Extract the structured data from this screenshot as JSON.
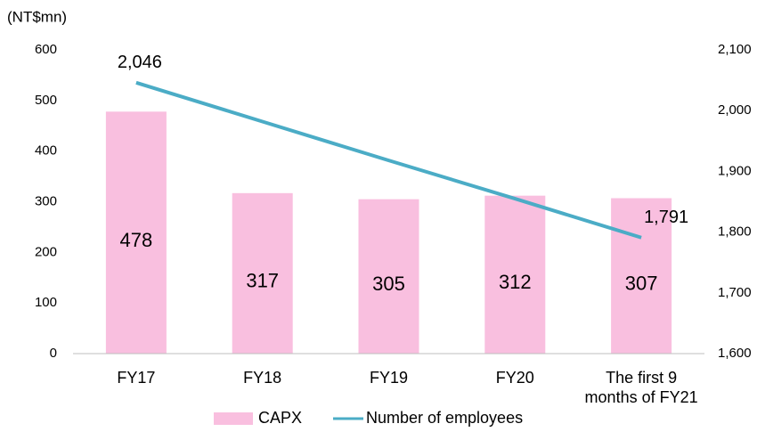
{
  "chart_data": {
    "type": "bar",
    "y_label": "(NT$mn)",
    "categories": [
      "FY17",
      "FY18",
      "FY19",
      "FY20",
      "The first 9 months of FY21"
    ],
    "series": [
      {
        "name": "CAPX",
        "type": "bar",
        "color": "#f9bfdf",
        "values": [
          478,
          317,
          305,
          312,
          307
        ]
      },
      {
        "name": "Number of employees",
        "type": "line",
        "axis": "y2",
        "color": "#4bacc6",
        "values": [
          2046,
          1982,
          1918,
          1855,
          1791
        ],
        "value_labels": [
          "2,046",
          null,
          null,
          null,
          "1,791"
        ]
      }
    ],
    "ylim": [
      0,
      600
    ],
    "yticks": [
      0,
      100,
      200,
      300,
      400,
      500,
      600
    ],
    "y2lim": [
      1600,
      2100
    ],
    "y2ticks": [
      {
        "value": 1600,
        "label": "1,600"
      },
      {
        "value": 1700,
        "label": "1,700"
      },
      {
        "value": 1800,
        "label": "1,800"
      },
      {
        "value": 1900,
        "label": "1,900"
      },
      {
        "value": 2000,
        "label": "2,000"
      },
      {
        "value": 2100,
        "label": "2,100"
      }
    ],
    "grid": false,
    "legend": "bottom"
  }
}
